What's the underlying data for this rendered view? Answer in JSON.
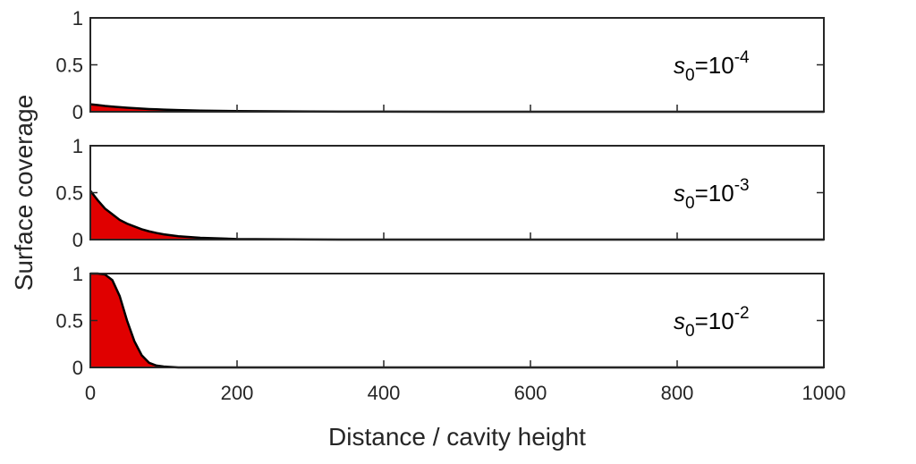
{
  "chart_data": [
    {
      "type": "area",
      "color": "#e00000",
      "line_color": "#000000",
      "x": [
        0,
        10,
        20,
        30,
        40,
        50,
        60,
        70,
        80,
        90,
        100,
        120,
        150,
        200,
        300,
        400,
        600,
        800,
        1000
      ],
      "values": [
        0.08,
        0.071,
        0.062,
        0.055,
        0.049,
        0.043,
        0.038,
        0.033,
        0.029,
        0.026,
        0.023,
        0.018,
        0.012,
        0.007,
        0.002,
        0.001,
        0,
        0,
        0
      ],
      "xlim": [
        0,
        1000
      ],
      "xticks": [
        0,
        200,
        400,
        600,
        800,
        1000
      ],
      "ylim": [
        0,
        1
      ],
      "yticks": [
        0,
        0.5,
        1
      ],
      "annotation": {
        "symbol": "s",
        "subscript": "0",
        "base": "=10",
        "exponent": "-4"
      }
    },
    {
      "type": "area",
      "color": "#e00000",
      "line_color": "#000000",
      "x": [
        0,
        10,
        20,
        30,
        40,
        50,
        60,
        70,
        80,
        90,
        100,
        120,
        150,
        200,
        300,
        400,
        600,
        800,
        1000
      ],
      "values": [
        0.52,
        0.42,
        0.33,
        0.27,
        0.21,
        0.17,
        0.14,
        0.11,
        0.088,
        0.071,
        0.056,
        0.036,
        0.019,
        0.006,
        0.001,
        0,
        0,
        0,
        0
      ],
      "xlim": [
        0,
        1000
      ],
      "xticks": [
        0,
        200,
        400,
        600,
        800,
        1000
      ],
      "ylim": [
        0,
        1
      ],
      "yticks": [
        0,
        0.5,
        1
      ],
      "ylabel": "Surface coverage",
      "annotation": {
        "symbol": "s",
        "subscript": "0",
        "base": "=10",
        "exponent": "-3"
      }
    },
    {
      "type": "area",
      "color": "#e00000",
      "line_color": "#000000",
      "x": [
        0,
        10,
        20,
        30,
        40,
        50,
        60,
        70,
        80,
        90,
        100,
        120,
        150,
        200,
        300,
        400,
        600,
        800,
        1000
      ],
      "values": [
        1,
        1,
        0.99,
        0.93,
        0.76,
        0.5,
        0.28,
        0.13,
        0.05,
        0.02,
        0.01,
        0,
        0,
        0,
        0,
        0,
        0,
        0,
        0
      ],
      "xlim": [
        0,
        1000
      ],
      "xticks": [
        0,
        200,
        400,
        600,
        800,
        1000
      ],
      "ylim": [
        0,
        1
      ],
      "yticks": [
        0,
        0.5,
        1
      ],
      "xlabel": "Distance / cavity height",
      "annotation": {
        "symbol": "s",
        "subscript": "0",
        "base": "=10",
        "exponent": "-2"
      }
    }
  ]
}
